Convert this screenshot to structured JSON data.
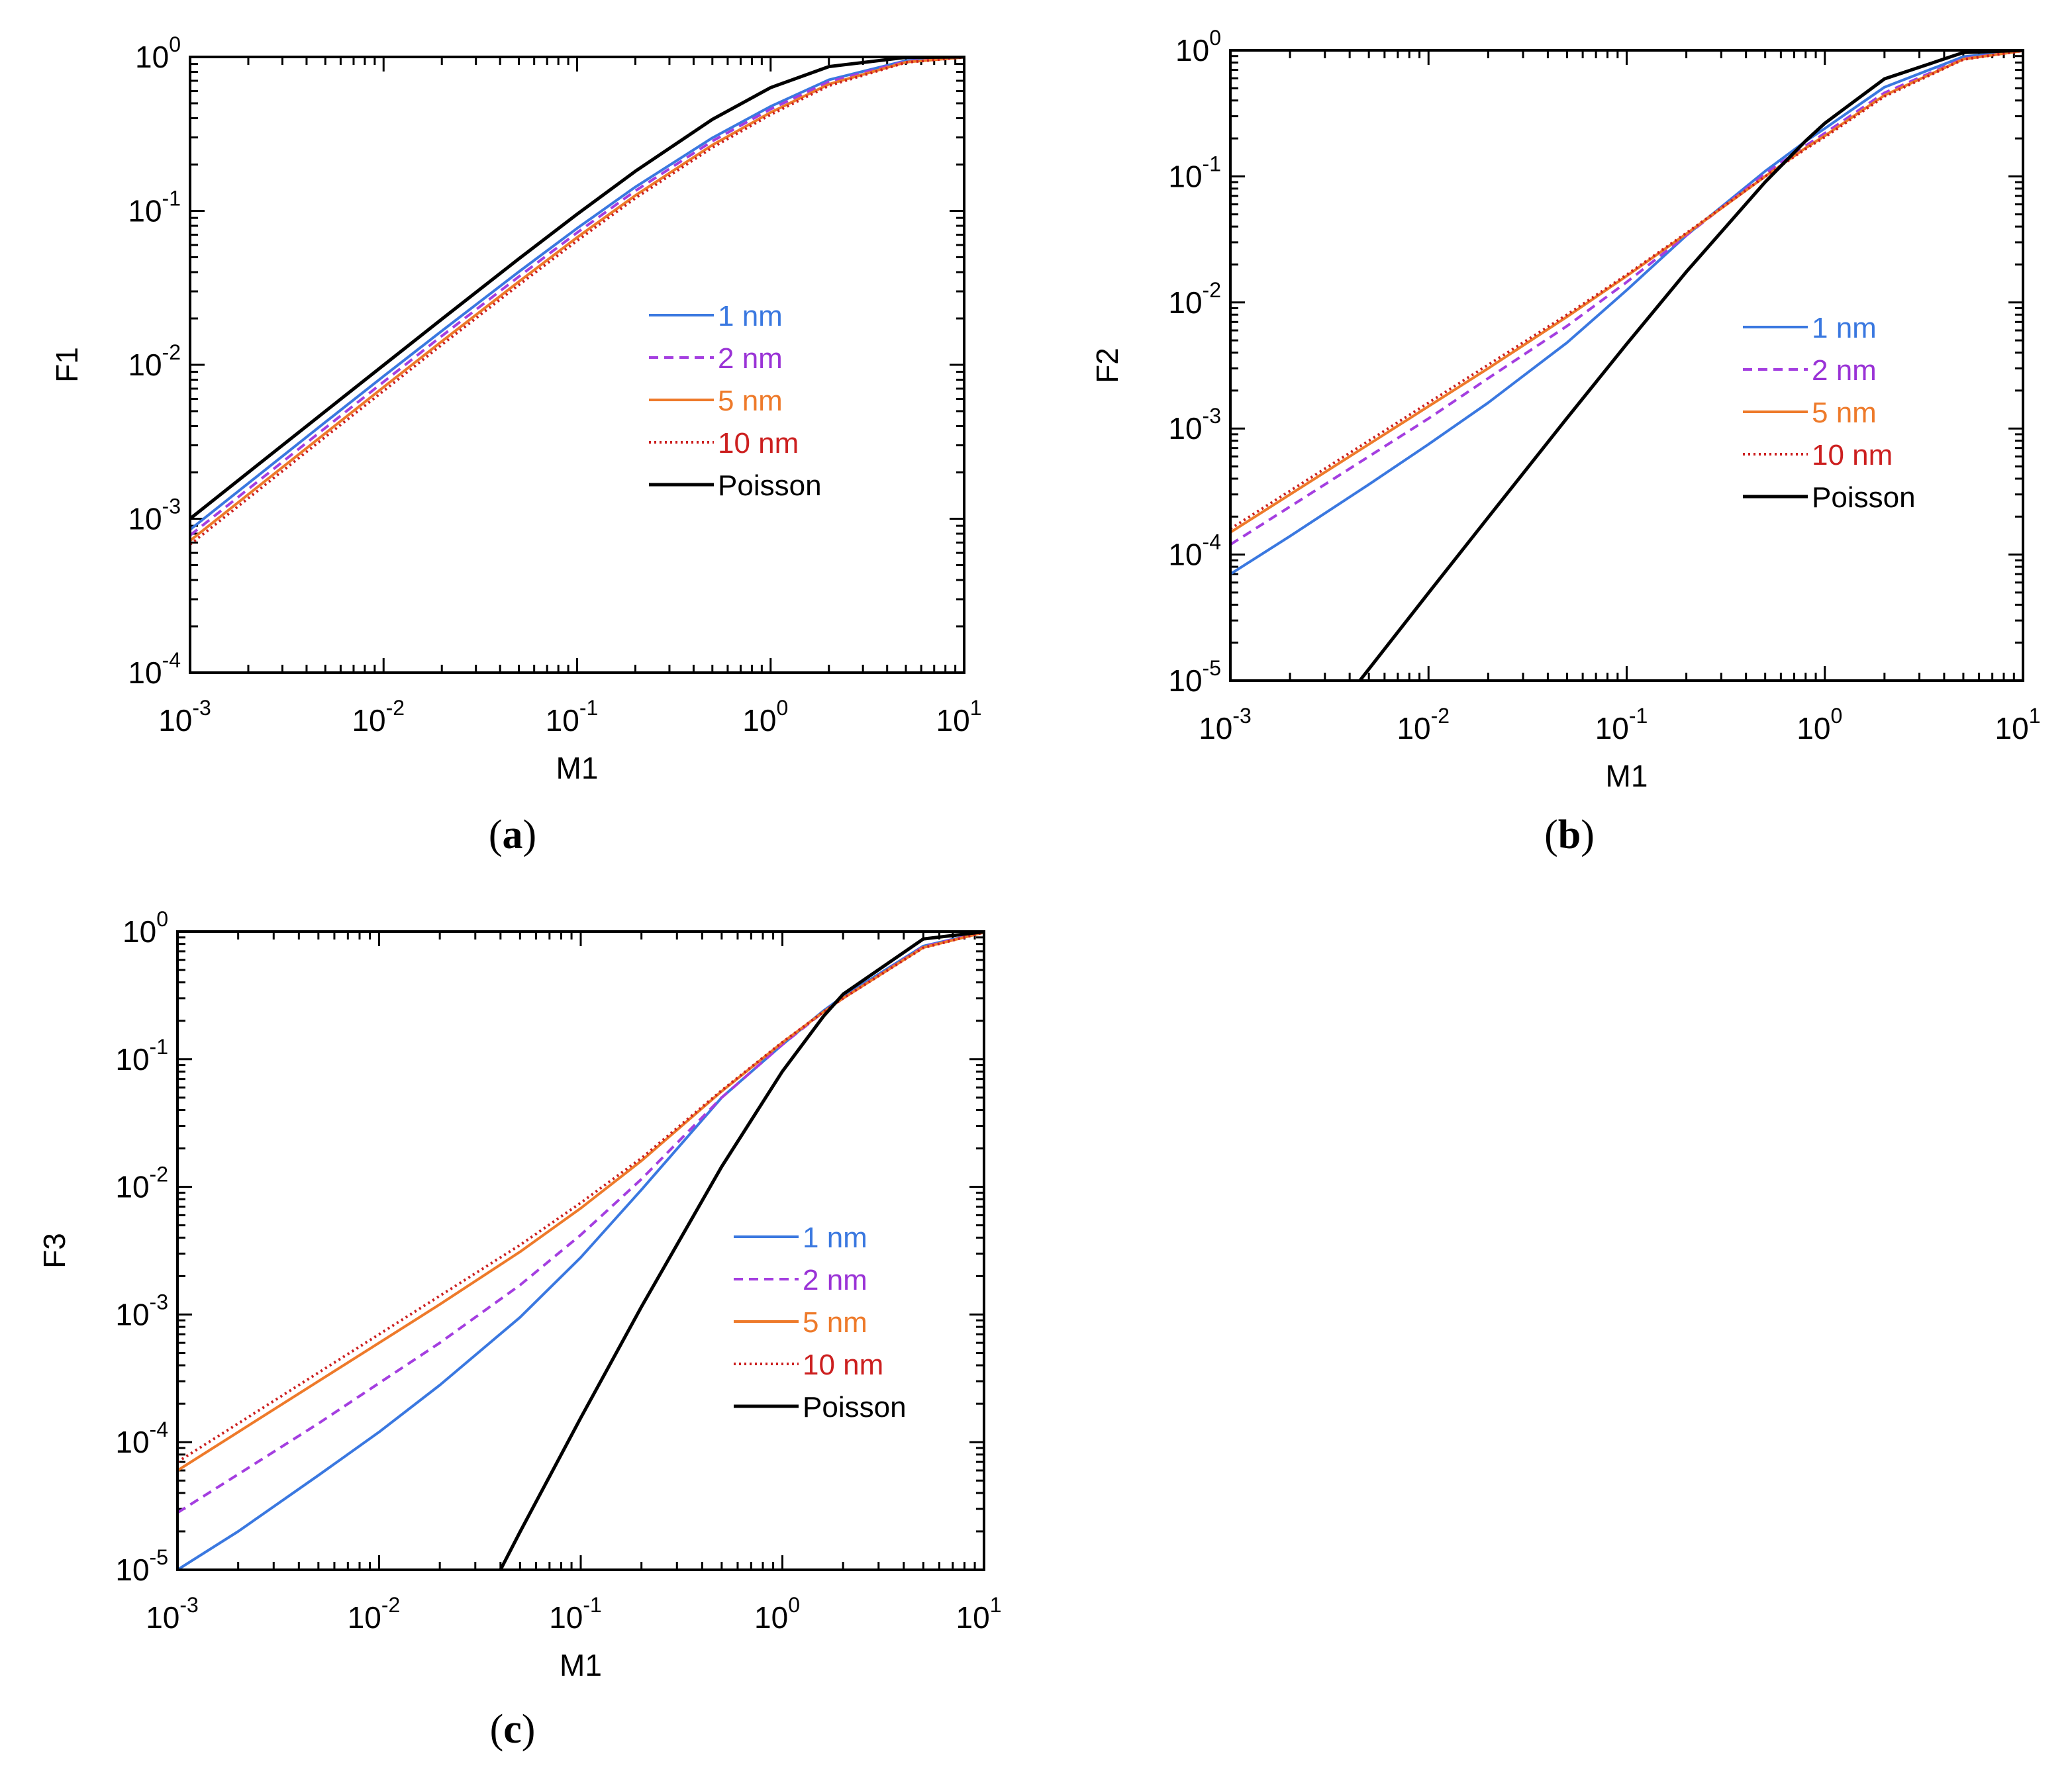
{
  "figure": {
    "panel_labels": [
      "a",
      "b",
      "c"
    ]
  },
  "series_styles": [
    {
      "name": "1 nm",
      "color": "#3a78e0",
      "dash": "solid",
      "text_color": "#3a78e0"
    },
    {
      "name": "2 nm",
      "color": "#a43ee0",
      "dash": "dashed",
      "text_color": "#9a33d6"
    },
    {
      "name": "5 nm",
      "color": "#ee7a2a",
      "dash": "solid",
      "text_color": "#ee7a2a"
    },
    {
      "name": "10 nm",
      "color": "#cc1f1f",
      "dash": "dotted",
      "text_color": "#cc1f1f"
    },
    {
      "name": "Poisson",
      "color": "#000000",
      "dash": "solid",
      "text_color": "#000000"
    }
  ],
  "chart_data": [
    {
      "type": "line",
      "panel": "a",
      "title": "",
      "xlabel": "M1",
      "ylabel": "F1",
      "xscale": "log",
      "yscale": "log",
      "xlim": [
        0.001,
        10
      ],
      "ylim": [
        0.0001,
        1
      ],
      "x_ticks": [
        {
          "base": "10",
          "exp": "-3"
        },
        {
          "base": "10",
          "exp": "-2"
        },
        {
          "base": "10",
          "exp": "-1"
        },
        {
          "base": "10",
          "exp": "0"
        },
        {
          "base": "10",
          "exp": "1"
        }
      ],
      "y_ticks": [
        {
          "base": "10",
          "exp": "-4"
        },
        {
          "base": "10",
          "exp": "-3"
        },
        {
          "base": "10",
          "exp": "-2"
        },
        {
          "base": "10",
          "exp": "-1"
        },
        {
          "base": "10",
          "exp": "0"
        }
      ],
      "legend": [
        "1 nm",
        "2 nm",
        "5 nm",
        "10 nm",
        "Poisson"
      ],
      "legend_position": "center-right",
      "series": [
        {
          "name": "1 nm",
          "x": [
            0.001,
            0.002,
            0.005,
            0.01,
            0.02,
            0.05,
            0.1,
            0.2,
            0.5,
            1,
            2,
            5,
            10
          ],
          "y": [
            0.00085,
            0.0017,
            0.00424,
            0.00843,
            0.0166,
            0.0402,
            0.0771,
            0.143,
            0.298,
            0.477,
            0.71,
            0.945,
            0.997
          ]
        },
        {
          "name": "2 nm",
          "x": [
            0.001,
            0.002,
            0.005,
            0.01,
            0.02,
            0.05,
            0.1,
            0.2,
            0.5,
            1,
            2,
            5,
            10
          ],
          "y": [
            0.00078,
            0.00156,
            0.00389,
            0.00775,
            0.0154,
            0.0374,
            0.0722,
            0.135,
            0.284,
            0.458,
            0.69,
            0.935,
            0.996
          ]
        },
        {
          "name": "5 nm",
          "x": [
            0.001,
            0.002,
            0.005,
            0.01,
            0.02,
            0.05,
            0.1,
            0.2,
            0.5,
            1,
            2,
            5,
            10
          ],
          "y": [
            0.00072,
            0.00144,
            0.00359,
            0.00716,
            0.0142,
            0.0347,
            0.0672,
            0.126,
            0.268,
            0.436,
            0.665,
            0.925,
            0.995
          ]
        },
        {
          "name": "10 nm",
          "x": [
            0.001,
            0.002,
            0.005,
            0.01,
            0.02,
            0.05,
            0.1,
            0.2,
            0.5,
            1,
            2,
            5,
            10
          ],
          "y": [
            0.00068,
            0.00136,
            0.0034,
            0.00677,
            0.0135,
            0.033,
            0.064,
            0.121,
            0.258,
            0.422,
            0.65,
            0.92,
            0.995
          ]
        },
        {
          "name": "Poisson",
          "x": [
            0.001,
            0.002,
            0.005,
            0.01,
            0.02,
            0.05,
            0.1,
            0.2,
            0.5,
            1,
            2,
            5,
            10
          ],
          "y": [
            0.001,
            0.002,
            0.00499,
            0.00995,
            0.0198,
            0.0488,
            0.0952,
            0.181,
            0.393,
            0.632,
            0.865,
            0.993,
            1.0
          ]
        }
      ]
    },
    {
      "type": "line",
      "panel": "b",
      "title": "",
      "xlabel": "M1",
      "ylabel": "F2",
      "xscale": "log",
      "yscale": "log",
      "xlim": [
        0.001,
        10
      ],
      "ylim": [
        1e-05,
        1
      ],
      "x_ticks": [
        {
          "base": "10",
          "exp": "-3"
        },
        {
          "base": "10",
          "exp": "-2"
        },
        {
          "base": "10",
          "exp": "-1"
        },
        {
          "base": "10",
          "exp": "0"
        },
        {
          "base": "10",
          "exp": "1"
        }
      ],
      "y_ticks": [
        {
          "base": "10",
          "exp": "-5"
        },
        {
          "base": "10",
          "exp": "-4"
        },
        {
          "base": "10",
          "exp": "-3"
        },
        {
          "base": "10",
          "exp": "-2"
        },
        {
          "base": "10",
          "exp": "-1"
        },
        {
          "base": "10",
          "exp": "0"
        }
      ],
      "legend": [
        "1 nm",
        "2 nm",
        "5 nm",
        "10 nm",
        "Poisson"
      ],
      "legend_position": "center-right",
      "series": [
        {
          "name": "1 nm",
          "x": [
            0.001,
            0.002,
            0.005,
            0.01,
            0.02,
            0.05,
            0.1,
            0.2,
            0.5,
            0.8,
            1,
            2,
            5,
            10
          ],
          "y": [
            7e-05,
            0.00014,
            0.00036,
            0.00075,
            0.0016,
            0.0048,
            0.0125,
            0.034,
            0.11,
            0.19,
            0.24,
            0.51,
            0.89,
            0.995
          ]
        },
        {
          "name": "2 nm",
          "x": [
            0.001,
            0.002,
            0.005,
            0.01,
            0.02,
            0.05,
            0.1,
            0.2,
            0.5,
            0.8,
            1,
            2,
            5,
            10
          ],
          "y": [
            0.00012,
            0.00024,
            0.0006,
            0.0012,
            0.0025,
            0.0065,
            0.0145,
            0.034,
            0.105,
            0.175,
            0.22,
            0.46,
            0.86,
            0.993
          ]
        },
        {
          "name": "5 nm",
          "x": [
            0.001,
            0.002,
            0.005,
            0.01,
            0.02,
            0.05,
            0.1,
            0.2,
            0.5,
            0.8,
            1,
            2,
            5,
            10
          ],
          "y": [
            0.00015,
            0.0003,
            0.00075,
            0.0015,
            0.003,
            0.0077,
            0.0162,
            0.035,
            0.1,
            0.168,
            0.21,
            0.44,
            0.85,
            0.992
          ]
        },
        {
          "name": "10 nm",
          "x": [
            0.001,
            0.002,
            0.005,
            0.01,
            0.02,
            0.05,
            0.1,
            0.2,
            0.5,
            0.8,
            1,
            2,
            5,
            10
          ],
          "y": [
            0.00016,
            0.00032,
            0.0008,
            0.0016,
            0.0032,
            0.008,
            0.0166,
            0.0355,
            0.1,
            0.165,
            0.205,
            0.43,
            0.845,
            0.991
          ]
        },
        {
          "name": "Poisson",
          "x": [
            0.0045,
            0.01,
            0.02,
            0.05,
            0.1,
            0.2,
            0.5,
            0.8,
            1,
            2,
            5,
            10
          ],
          "y": [
            1e-05,
            4.97e-05,
            0.000197,
            0.00121,
            0.00468,
            0.0175,
            0.0902,
            0.191,
            0.264,
            0.594,
            0.96,
            1.0
          ]
        }
      ]
    },
    {
      "type": "line",
      "panel": "c",
      "title": "",
      "xlabel": "M1",
      "ylabel": "F3",
      "xscale": "log",
      "yscale": "log",
      "xlim": [
        0.001,
        10
      ],
      "ylim": [
        1e-05,
        1
      ],
      "x_ticks": [
        {
          "base": "10",
          "exp": "-3"
        },
        {
          "base": "10",
          "exp": "-2"
        },
        {
          "base": "10",
          "exp": "-1"
        },
        {
          "base": "10",
          "exp": "0"
        },
        {
          "base": "10",
          "exp": "1"
        }
      ],
      "y_ticks": [
        {
          "base": "10",
          "exp": "-5"
        },
        {
          "base": "10",
          "exp": "-4"
        },
        {
          "base": "10",
          "exp": "-3"
        },
        {
          "base": "10",
          "exp": "-2"
        },
        {
          "base": "10",
          "exp": "-1"
        },
        {
          "base": "10",
          "exp": "0"
        }
      ],
      "legend": [
        "1 nm",
        "2 nm",
        "5 nm",
        "10 nm",
        "Poisson"
      ],
      "legend_position": "center-right",
      "series": [
        {
          "name": "1 nm",
          "x": [
            0.001,
            0.002,
            0.005,
            0.01,
            0.02,
            0.05,
            0.1,
            0.2,
            0.5,
            1,
            1.6,
            2,
            5,
            10
          ],
          "y": [
            1e-05,
            2e-05,
            5.5e-05,
            0.00012,
            0.00028,
            0.00095,
            0.0028,
            0.0095,
            0.05,
            0.13,
            0.24,
            0.31,
            0.77,
            0.99
          ]
        },
        {
          "name": "2 nm",
          "x": [
            0.001,
            0.002,
            0.005,
            0.01,
            0.02,
            0.05,
            0.1,
            0.2,
            0.5,
            1,
            1.6,
            2,
            5,
            10
          ],
          "y": [
            2.8e-05,
            5.6e-05,
            0.00014,
            0.00029,
            0.0006,
            0.0017,
            0.0042,
            0.0115,
            0.05,
            0.13,
            0.235,
            0.3,
            0.76,
            0.99
          ]
        },
        {
          "name": "5 nm",
          "x": [
            0.001,
            0.002,
            0.005,
            0.01,
            0.02,
            0.05,
            0.1,
            0.2,
            0.5,
            1,
            1.6,
            2,
            5,
            10
          ],
          "y": [
            6e-05,
            0.00012,
            0.0003,
            0.0006,
            0.0012,
            0.0031,
            0.0068,
            0.016,
            0.056,
            0.135,
            0.235,
            0.3,
            0.75,
            0.985
          ]
        },
        {
          "name": "10 nm",
          "x": [
            0.001,
            0.002,
            0.005,
            0.01,
            0.02,
            0.05,
            0.1,
            0.2,
            0.5,
            1,
            1.6,
            2,
            5,
            10
          ],
          "y": [
            7e-05,
            0.00014,
            0.00035,
            0.0007,
            0.0014,
            0.0035,
            0.0075,
            0.0168,
            0.057,
            0.136,
            0.235,
            0.3,
            0.745,
            0.985
          ]
        },
        {
          "name": "Poisson",
          "x": [
            0.04,
            0.05,
            0.1,
            0.2,
            0.5,
            1,
            1.6,
            2,
            5,
            10
          ],
          "y": [
            1e-05,
            1.98e-05,
            0.000155,
            0.00115,
            0.0144,
            0.0803,
            0.217,
            0.323,
            0.875,
            0.997
          ]
        }
      ]
    }
  ]
}
